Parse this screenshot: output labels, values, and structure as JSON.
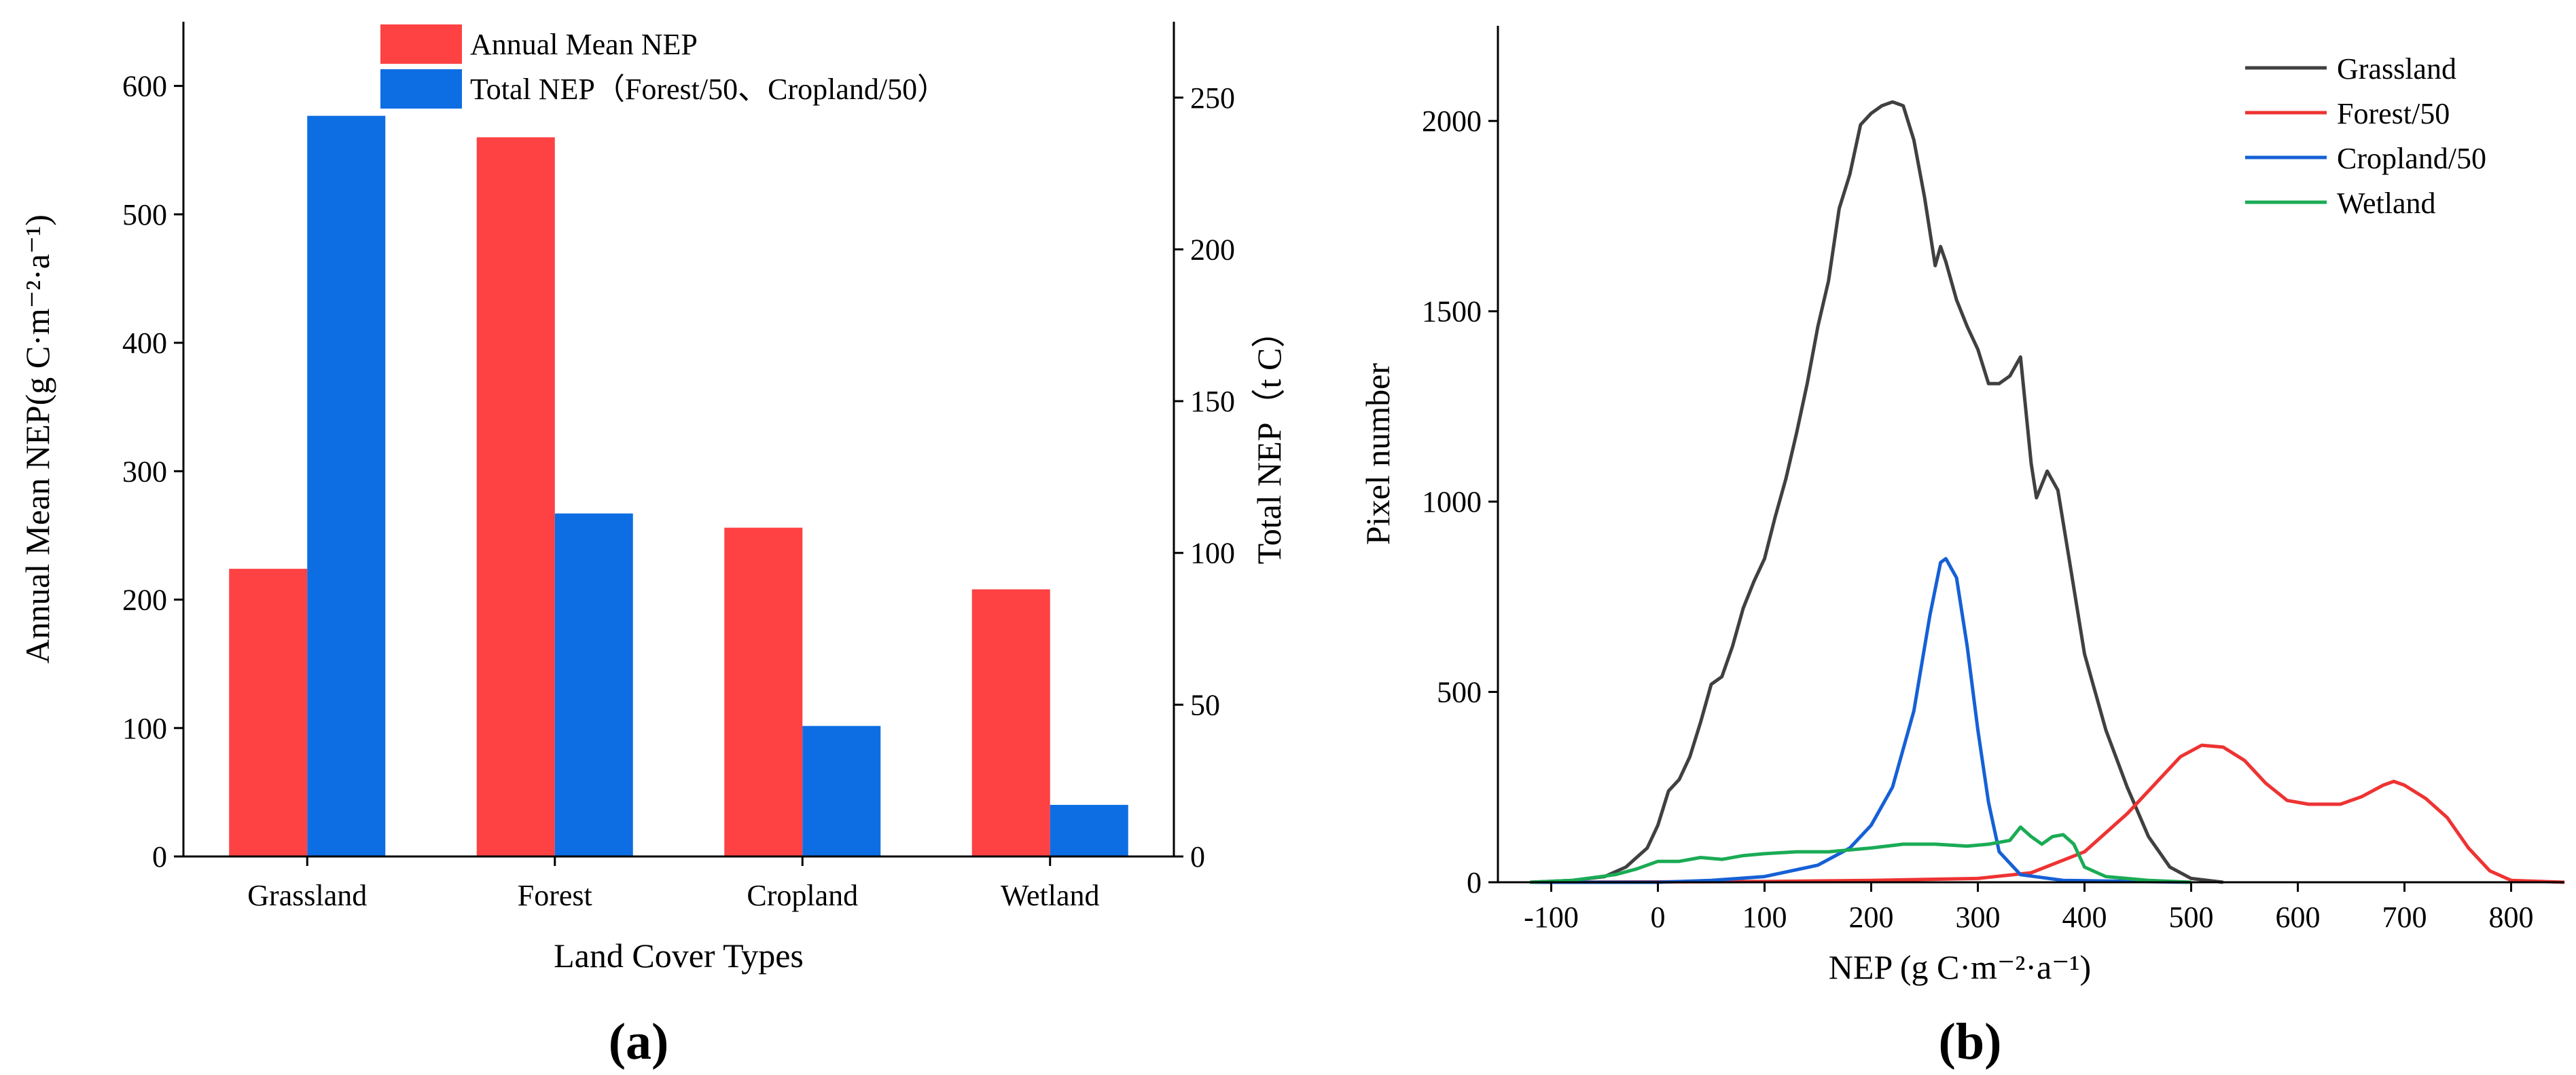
{
  "chart_data": [
    {
      "panel": "(a)",
      "type": "bar",
      "categories": [
        "Grassland",
        "Forest",
        "Cropland",
        "Wetland"
      ],
      "xlabel": "Land Cover Types",
      "ylabel_left": "Annual Mean NEP(g C·m⁻²·a⁻¹)",
      "ylabel_right": "Total NEP（t C）",
      "ylim_left": [
        0,
        650
      ],
      "ylim_right": [
        0,
        275
      ],
      "yticks_left": [
        0,
        100,
        200,
        300,
        400,
        500,
        600
      ],
      "yticks_right": [
        0,
        50,
        100,
        150,
        200,
        250
      ],
      "legend_position": "top-center",
      "series": [
        {
          "name": "Annual Mean NEP",
          "axis": "left",
          "color": "#fe4143",
          "values": [
            224,
            560,
            256,
            208
          ]
        },
        {
          "name": "Total NEP（Forest/50、Cropland/50）",
          "axis": "right",
          "color": "#0d6ee3",
          "values": [
            244,
            113,
            43,
            17
          ]
        }
      ]
    },
    {
      "panel": "(b)",
      "type": "line",
      "xlabel": "NEP (g C·m⁻²·a⁻¹)",
      "ylabel": "Pixel number",
      "xlim": [
        -150,
        850
      ],
      "ylim": [
        0,
        2250
      ],
      "xticks": [
        -100,
        0,
        100,
        200,
        300,
        400,
        500,
        600,
        700,
        800
      ],
      "yticks": [
        0,
        500,
        1000,
        1500,
        2000
      ],
      "legend_position": "top-right",
      "series": [
        {
          "name": "Grassland",
          "color": "#404040",
          "points": [
            [
              -120,
              0
            ],
            [
              -80,
              5
            ],
            [
              -50,
              15
            ],
            [
              -30,
              40
            ],
            [
              -10,
              90
            ],
            [
              0,
              150
            ],
            [
              10,
              240
            ],
            [
              20,
              270
            ],
            [
              30,
              330
            ],
            [
              40,
              420
            ],
            [
              50,
              520
            ],
            [
              60,
              540
            ],
            [
              70,
              620
            ],
            [
              80,
              720
            ],
            [
              90,
              790
            ],
            [
              100,
              850
            ],
            [
              110,
              960
            ],
            [
              120,
              1060
            ],
            [
              130,
              1180
            ],
            [
              140,
              1310
            ],
            [
              150,
              1460
            ],
            [
              160,
              1580
            ],
            [
              170,
              1770
            ],
            [
              180,
              1860
            ],
            [
              190,
              1990
            ],
            [
              200,
              2020
            ],
            [
              210,
              2040
            ],
            [
              220,
              2050
            ],
            [
              230,
              2040
            ],
            [
              240,
              1950
            ],
            [
              250,
              1800
            ],
            [
              260,
              1620
            ],
            [
              265,
              1670
            ],
            [
              270,
              1630
            ],
            [
              280,
              1530
            ],
            [
              290,
              1460
            ],
            [
              300,
              1400
            ],
            [
              310,
              1310
            ],
            [
              320,
              1310
            ],
            [
              330,
              1330
            ],
            [
              340,
              1380
            ],
            [
              350,
              1100
            ],
            [
              355,
              1010
            ],
            [
              365,
              1080
            ],
            [
              375,
              1030
            ],
            [
              385,
              860
            ],
            [
              400,
              600
            ],
            [
              420,
              400
            ],
            [
              440,
              250
            ],
            [
              460,
              120
            ],
            [
              480,
              40
            ],
            [
              500,
              10
            ],
            [
              530,
              0
            ]
          ]
        },
        {
          "name": "Forest/50",
          "color": "#ee3333",
          "points": [
            [
              -120,
              0
            ],
            [
              100,
              2
            ],
            [
              200,
              5
            ],
            [
              300,
              10
            ],
            [
              350,
              25
            ],
            [
              400,
              80
            ],
            [
              440,
              180
            ],
            [
              470,
              270
            ],
            [
              490,
              330
            ],
            [
              510,
              360
            ],
            [
              530,
              355
            ],
            [
              550,
              320
            ],
            [
              570,
              260
            ],
            [
              590,
              215
            ],
            [
              610,
              205
            ],
            [
              640,
              205
            ],
            [
              660,
              225
            ],
            [
              680,
              255
            ],
            [
              690,
              265
            ],
            [
              700,
              255
            ],
            [
              720,
              220
            ],
            [
              740,
              170
            ],
            [
              760,
              90
            ],
            [
              780,
              30
            ],
            [
              800,
              5
            ],
            [
              850,
              0
            ]
          ]
        },
        {
          "name": "Cropland/50",
          "color": "#1560d6",
          "points": [
            [
              -120,
              0
            ],
            [
              0,
              0
            ],
            [
              50,
              5
            ],
            [
              100,
              15
            ],
            [
              150,
              45
            ],
            [
              180,
              90
            ],
            [
              200,
              150
            ],
            [
              220,
              250
            ],
            [
              240,
              450
            ],
            [
              255,
              700
            ],
            [
              265,
              840
            ],
            [
              270,
              850
            ],
            [
              280,
              800
            ],
            [
              290,
              620
            ],
            [
              300,
              400
            ],
            [
              310,
              210
            ],
            [
              320,
              80
            ],
            [
              340,
              20
            ],
            [
              380,
              5
            ],
            [
              500,
              0
            ]
          ]
        },
        {
          "name": "Wetland",
          "color": "#1aab55",
          "points": [
            [
              -120,
              0
            ],
            [
              -80,
              5
            ],
            [
              -40,
              20
            ],
            [
              -20,
              35
            ],
            [
              0,
              55
            ],
            [
              20,
              55
            ],
            [
              40,
              65
            ],
            [
              60,
              60
            ],
            [
              80,
              70
            ],
            [
              100,
              75
            ],
            [
              130,
              80
            ],
            [
              160,
              80
            ],
            [
              200,
              90
            ],
            [
              230,
              100
            ],
            [
              260,
              100
            ],
            [
              290,
              95
            ],
            [
              310,
              100
            ],
            [
              330,
              110
            ],
            [
              340,
              145
            ],
            [
              350,
              120
            ],
            [
              360,
              100
            ],
            [
              370,
              120
            ],
            [
              380,
              125
            ],
            [
              390,
              100
            ],
            [
              400,
              40
            ],
            [
              420,
              15
            ],
            [
              460,
              5
            ],
            [
              500,
              0
            ]
          ]
        }
      ]
    }
  ]
}
